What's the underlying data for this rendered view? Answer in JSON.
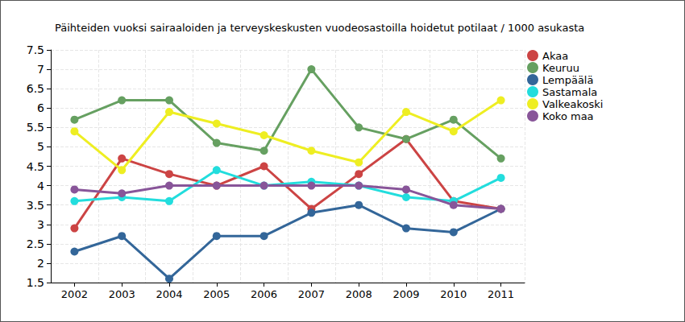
{
  "chart_data": {
    "type": "line",
    "title": "Päihteiden vuoksi sairaaloiden ja terveyskeskusten vuodeosastoilla hoidetut potilaat / 1000 asukasta",
    "categories": [
      "2002",
      "2003",
      "2004",
      "2005",
      "2006",
      "2007",
      "2008",
      "2009",
      "2010",
      "2011"
    ],
    "series": [
      {
        "name": "Akaa",
        "color": "#cc4444",
        "values": [
          2.9,
          4.7,
          4.3,
          4.0,
          4.5,
          3.4,
          4.3,
          5.2,
          3.6,
          3.4
        ]
      },
      {
        "name": "Keuruu",
        "color": "#66a061",
        "values": [
          5.7,
          6.2,
          6.2,
          5.1,
          4.9,
          7.0,
          5.5,
          5.2,
          5.7,
          4.7
        ]
      },
      {
        "name": "Lempäälä",
        "color": "#336699",
        "values": [
          2.3,
          2.7,
          1.6,
          2.7,
          2.7,
          3.3,
          3.5,
          2.9,
          2.8,
          3.4
        ]
      },
      {
        "name": "Sastamala",
        "color": "#22dddd",
        "values": [
          3.6,
          3.7,
          3.6,
          4.4,
          4.0,
          4.1,
          4.0,
          3.7,
          3.6,
          4.2
        ]
      },
      {
        "name": "Valkeakoski",
        "color": "#eeee22",
        "values": [
          5.4,
          4.4,
          5.9,
          5.6,
          5.3,
          4.9,
          4.6,
          5.9,
          5.4,
          6.2
        ]
      },
      {
        "name": "Koko maa",
        "color": "#885599",
        "values": [
          3.9,
          3.8,
          4.0,
          4.0,
          4.0,
          4.0,
          4.0,
          3.9,
          3.5,
          3.4
        ]
      }
    ],
    "ylim": [
      1.5,
      7.5
    ],
    "yticks": [
      1.5,
      2,
      2.5,
      3,
      3.5,
      4,
      4.5,
      5,
      5.5,
      6,
      6.5,
      7,
      7.5
    ],
    "grid": true,
    "legend": "right",
    "marker": "circle"
  }
}
